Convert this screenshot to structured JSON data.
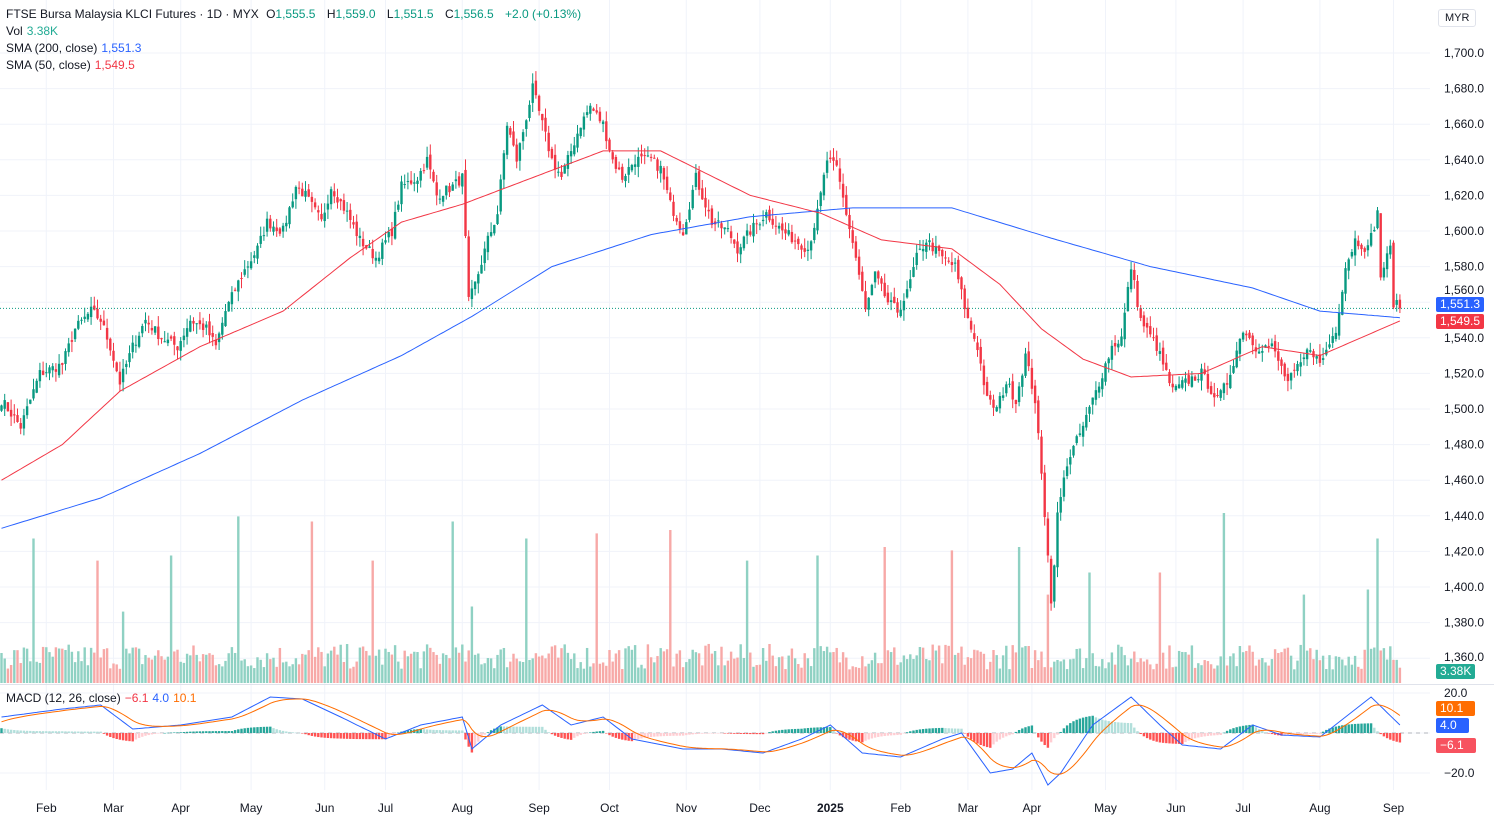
{
  "header": {
    "symbol": "FTSE Bursa Malaysia KLCI Futures · 1D · MYX",
    "o_label": "O",
    "o": "1,555.5",
    "h_label": "H",
    "h": "1,559.0",
    "l_label": "L",
    "l": "1,551.5",
    "c_label": "C",
    "c": "1,556.5",
    "change": "+2.0 (+0.13%)",
    "vol_label": "Vol",
    "vol": "3.38K",
    "sma200_label": "SMA (200, close)",
    "sma200": "1,551.3",
    "sma50_label": "SMA (50, close)",
    "sma50": "1,549.5",
    "macd_label": "MACD (12, 26, close)",
    "macd_hist": "−6.1",
    "macd": "4.0",
    "macd_signal": "10.1"
  },
  "currency": "MYR",
  "tags": {
    "sma200": "1,551.3",
    "sma50": "1,549.5",
    "vol": "3.38K",
    "signal": "10.1",
    "macd": "4.0",
    "hist": "−6.1"
  },
  "colors": {
    "up": "#089981",
    "down": "#f23645",
    "sma200": "#2962ff",
    "sma50": "#f23645",
    "signal": "#ff6d00",
    "vol_up": "#8fd1c3",
    "vol_down": "#f7a9a7"
  },
  "chart_data": {
    "type": "candlestick",
    "title": "FTSE Bursa Malaysia KLCI Futures · 1D · MYX",
    "last_close": 1556.5,
    "y_ticks": [
      1360,
      1380,
      1400,
      1420,
      1440,
      1460,
      1480,
      1500,
      1520,
      1540,
      1560,
      1580,
      1600,
      1620,
      1640,
      1660,
      1680,
      1700
    ],
    "ylim": [
      1360,
      1710
    ],
    "x_months": [
      {
        "label": "Feb",
        "day": 14
      },
      {
        "label": "Mar",
        "day": 35
      },
      {
        "label": "Apr",
        "day": 56
      },
      {
        "label": "May",
        "day": 78
      },
      {
        "label": "Jun",
        "day": 101
      },
      {
        "label": "Jul",
        "day": 120
      },
      {
        "label": "Aug",
        "day": 144
      },
      {
        "label": "Sep",
        "day": 168
      },
      {
        "label": "Oct",
        "day": 190
      },
      {
        "label": "Nov",
        "day": 214
      },
      {
        "label": "Dec",
        "day": 237
      },
      {
        "label": "2025",
        "day": 259
      },
      {
        "label": "Feb",
        "day": 281
      },
      {
        "label": "Mar",
        "day": 302
      },
      {
        "label": "Apr",
        "day": 322
      },
      {
        "label": "May",
        "day": 345
      },
      {
        "label": "Jun",
        "day": 367
      },
      {
        "label": "Jul",
        "day": 388
      },
      {
        "label": "Aug",
        "day": 412
      },
      {
        "label": "Sep",
        "day": 435
      }
    ],
    "close_keypoints": [
      [
        0,
        1505
      ],
      [
        6,
        1490
      ],
      [
        12,
        1520
      ],
      [
        19,
        1525
      ],
      [
        23,
        1545
      ],
      [
        28,
        1555
      ],
      [
        31,
        1550
      ],
      [
        34,
        1535
      ],
      [
        37,
        1515
      ],
      [
        41,
        1535
      ],
      [
        45,
        1550
      ],
      [
        50,
        1540
      ],
      [
        55,
        1535
      ],
      [
        59,
        1550
      ],
      [
        64,
        1545
      ],
      [
        67,
        1535
      ],
      [
        70,
        1555
      ],
      [
        75,
        1575
      ],
      [
        80,
        1590
      ],
      [
        83,
        1605
      ],
      [
        88,
        1600
      ],
      [
        92,
        1625
      ],
      [
        95,
        1620
      ],
      [
        100,
        1605
      ],
      [
        103,
        1625
      ],
      [
        108,
        1610
      ],
      [
        112,
        1595
      ],
      [
        117,
        1585
      ],
      [
        122,
        1600
      ],
      [
        125,
        1625
      ],
      [
        130,
        1630
      ],
      [
        133,
        1640
      ],
      [
        136,
        1620
      ],
      [
        141,
        1625
      ],
      [
        144,
        1630
      ],
      [
        146,
        1560
      ],
      [
        148,
        1570
      ],
      [
        152,
        1595
      ],
      [
        155,
        1610
      ],
      [
        158,
        1660
      ],
      [
        161,
        1640
      ],
      [
        166,
        1680
      ],
      [
        169,
        1660
      ],
      [
        172,
        1640
      ],
      [
        175,
        1630
      ],
      [
        178,
        1645
      ],
      [
        181,
        1660
      ],
      [
        184,
        1670
      ],
      [
        188,
        1660
      ],
      [
        191,
        1640
      ],
      [
        194,
        1630
      ],
      [
        198,
        1640
      ],
      [
        203,
        1640
      ],
      [
        206,
        1635
      ],
      [
        209,
        1615
      ],
      [
        213,
        1600
      ],
      [
        217,
        1630
      ],
      [
        222,
        1605
      ],
      [
        227,
        1600
      ],
      [
        230,
        1590
      ],
      [
        234,
        1600
      ],
      [
        239,
        1610
      ],
      [
        244,
        1600
      ],
      [
        248,
        1595
      ],
      [
        252,
        1590
      ],
      [
        255,
        1610
      ],
      [
        258,
        1640
      ],
      [
        261,
        1635
      ],
      [
        264,
        1610
      ],
      [
        267,
        1585
      ],
      [
        270,
        1555
      ],
      [
        273,
        1575
      ],
      [
        277,
        1560
      ],
      [
        280,
        1555
      ],
      [
        283,
        1565
      ],
      [
        286,
        1585
      ],
      [
        289,
        1595
      ],
      [
        294,
        1585
      ],
      [
        298,
        1580
      ],
      [
        302,
        1550
      ],
      [
        305,
        1535
      ],
      [
        308,
        1505
      ],
      [
        311,
        1500
      ],
      [
        314,
        1515
      ],
      [
        317,
        1505
      ],
      [
        320,
        1530
      ],
      [
        323,
        1505
      ],
      [
        327,
        1420
      ],
      [
        328,
        1390
      ],
      [
        330,
        1440
      ],
      [
        333,
        1470
      ],
      [
        338,
        1490
      ],
      [
        342,
        1510
      ],
      [
        347,
        1535
      ],
      [
        350,
        1540
      ],
      [
        353,
        1580
      ],
      [
        356,
        1550
      ],
      [
        361,
        1535
      ],
      [
        366,
        1510
      ],
      [
        370,
        1515
      ],
      [
        375,
        1520
      ],
      [
        380,
        1505
      ],
      [
        383,
        1515
      ],
      [
        388,
        1545
      ],
      [
        392,
        1535
      ],
      [
        397,
        1535
      ],
      [
        402,
        1515
      ],
      [
        406,
        1525
      ],
      [
        409,
        1535
      ],
      [
        412,
        1525
      ],
      [
        417,
        1545
      ],
      [
        420,
        1580
      ],
      [
        423,
        1595
      ],
      [
        427,
        1590
      ],
      [
        430,
        1610
      ],
      [
        431,
        1575
      ],
      [
        434,
        1590
      ],
      [
        435,
        1560
      ],
      [
        437,
        1556.5
      ]
    ],
    "sma200_keypoints": [
      [
        0,
        1433
      ],
      [
        31,
        1450
      ],
      [
        62,
        1475
      ],
      [
        94,
        1505
      ],
      [
        125,
        1530
      ],
      [
        147,
        1552
      ],
      [
        172,
        1580
      ],
      [
        203,
        1598
      ],
      [
        234,
        1608
      ],
      [
        266,
        1613
      ],
      [
        297,
        1613
      ],
      [
        328,
        1596
      ],
      [
        359,
        1580
      ],
      [
        391,
        1568
      ],
      [
        412,
        1555
      ],
      [
        437,
        1551.3
      ]
    ],
    "sma50_keypoints": [
      [
        0,
        1460
      ],
      [
        19,
        1480
      ],
      [
        37,
        1510
      ],
      [
        62,
        1535
      ],
      [
        88,
        1555
      ],
      [
        109,
        1585
      ],
      [
        125,
        1605
      ],
      [
        144,
        1615
      ],
      [
        166,
        1630
      ],
      [
        188,
        1645
      ],
      [
        206,
        1645
      ],
      [
        234,
        1620
      ],
      [
        256,
        1610
      ],
      [
        275,
        1595
      ],
      [
        297,
        1590
      ],
      [
        312,
        1570
      ],
      [
        325,
        1545
      ],
      [
        338,
        1528
      ],
      [
        353,
        1518
      ],
      [
        375,
        1520
      ],
      [
        394,
        1535
      ],
      [
        412,
        1530
      ],
      [
        437,
        1549.5
      ]
    ],
    "volume_last": 3380,
    "volume_spikes": [
      [
        10,
        0.85
      ],
      [
        30,
        0.72
      ],
      [
        38,
        0.42
      ],
      [
        53,
        0.75
      ],
      [
        74,
        0.98
      ],
      [
        97,
        0.95
      ],
      [
        116,
        0.72
      ],
      [
        141,
        0.95
      ],
      [
        147,
        0.45
      ],
      [
        164,
        0.85
      ],
      [
        186,
        0.88
      ],
      [
        209,
        0.9
      ],
      [
        233,
        0.72
      ],
      [
        255,
        0.75
      ],
      [
        276,
        0.8
      ],
      [
        297,
        0.78
      ],
      [
        318,
        0.8
      ],
      [
        327,
        0.52
      ],
      [
        340,
        0.65
      ],
      [
        362,
        0.65
      ],
      [
        382,
        1.0
      ],
      [
        407,
        0.52
      ],
      [
        430,
        0.85
      ],
      [
        427,
        0.55
      ]
    ],
    "macd_axis": [
      -20,
      20
    ],
    "macd_keypoints": [
      [
        0,
        8
      ],
      [
        19,
        12
      ],
      [
        31,
        14
      ],
      [
        41,
        2
      ],
      [
        56,
        4
      ],
      [
        72,
        8
      ],
      [
        84,
        18
      ],
      [
        94,
        17
      ],
      [
        106,
        8
      ],
      [
        120,
        -3
      ],
      [
        131,
        4
      ],
      [
        144,
        8
      ],
      [
        147,
        -8
      ],
      [
        156,
        4
      ],
      [
        169,
        14
      ],
      [
        178,
        4
      ],
      [
        188,
        8
      ],
      [
        197,
        -3
      ],
      [
        213,
        -8
      ],
      [
        225,
        -8
      ],
      [
        238,
        -10
      ],
      [
        250,
        -3
      ],
      [
        259,
        4
      ],
      [
        269,
        -10
      ],
      [
        281,
        -12
      ],
      [
        294,
        -3
      ],
      [
        300,
        0
      ],
      [
        309,
        -20
      ],
      [
        316,
        -18
      ],
      [
        322,
        -10
      ],
      [
        327,
        -26
      ],
      [
        331,
        -20
      ],
      [
        341,
        4
      ],
      [
        353,
        18
      ],
      [
        362,
        4
      ],
      [
        369,
        -6
      ],
      [
        381,
        -8
      ],
      [
        391,
        4
      ],
      [
        400,
        -1
      ],
      [
        412,
        -2
      ],
      [
        428,
        18
      ],
      [
        437,
        4
      ]
    ]
  }
}
